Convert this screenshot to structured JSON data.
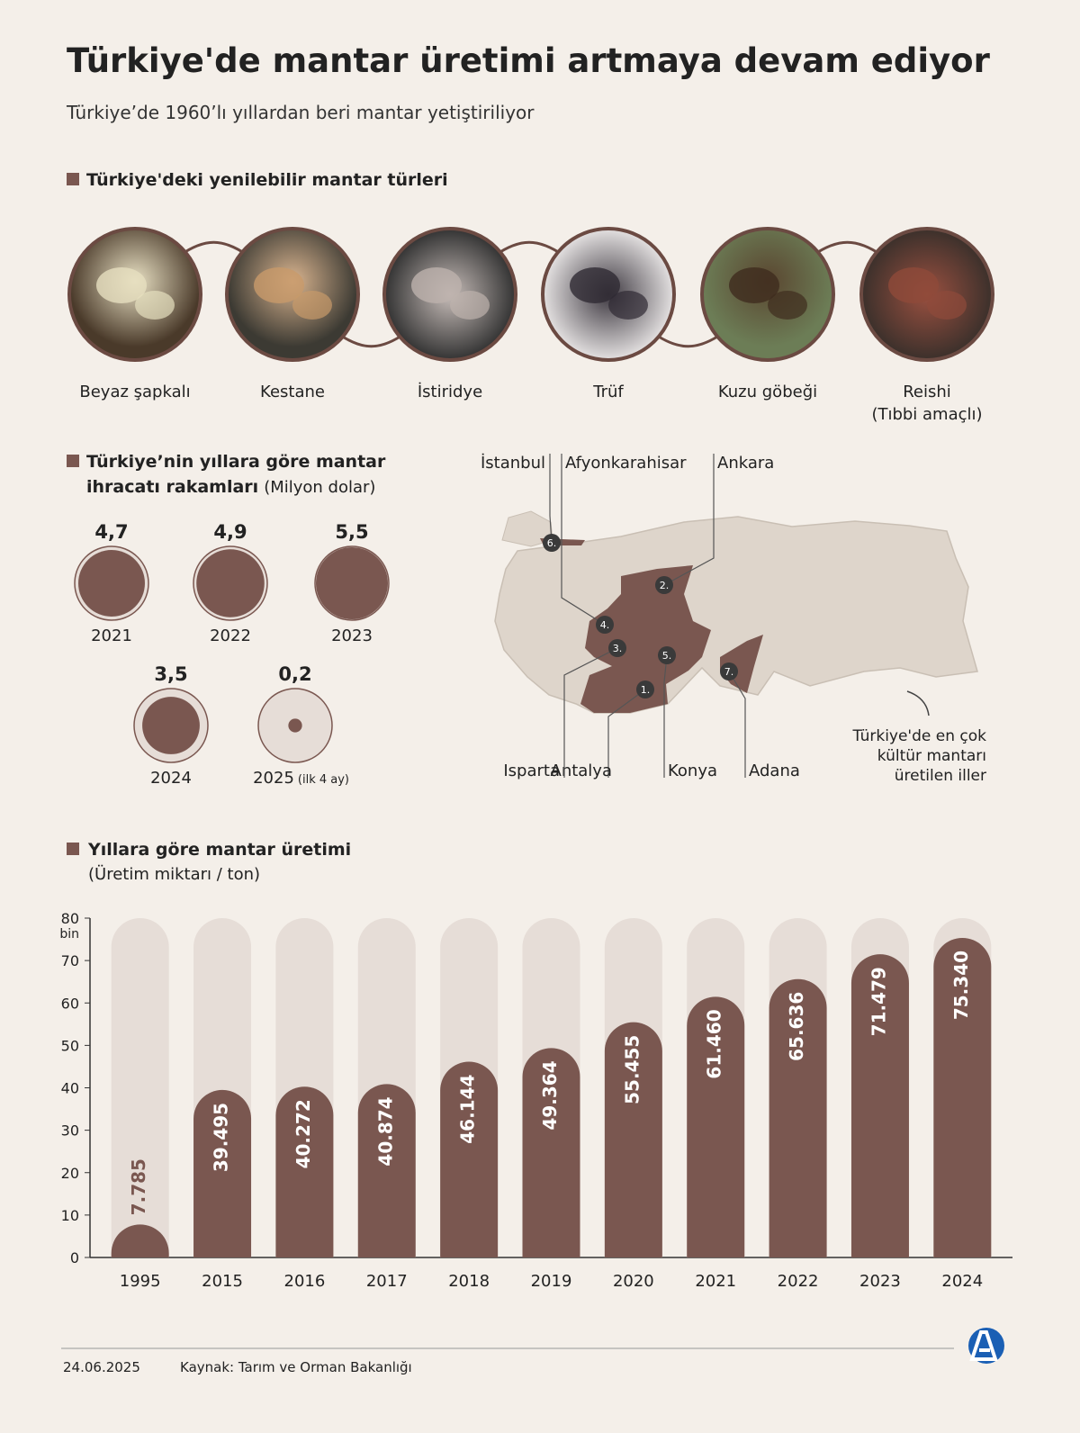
{
  "title": "Türkiye'de mantar üretimi artmaya devam ediyor",
  "subtitle": "Türkiye’de 1960’lı yıllardan beri mantar yetiştiriliyor",
  "types_section": {
    "heading": "Türkiye'deki yenilebilir mantar türleri",
    "items": [
      {
        "name": "Beyaz şapkalı"
      },
      {
        "name": "Kestane"
      },
      {
        "name": "İstiridye"
      },
      {
        "name": "Trüf"
      },
      {
        "name": "Kuzu göbeği"
      },
      {
        "name": "Reishi",
        "note": "(Tıbbi amaçlı)"
      }
    ]
  },
  "map_section": {
    "provinces": [
      {
        "number": "1.",
        "name": "Antalya"
      },
      {
        "number": "2.",
        "name": "Ankara"
      },
      {
        "number": "3.",
        "name": "Isparta"
      },
      {
        "number": "4.",
        "name": "Afyonkarahisar"
      },
      {
        "number": "5.",
        "name": "Konya"
      },
      {
        "number": "6.",
        "name": "İstanbul"
      },
      {
        "number": "7.",
        "name": "Adana"
      }
    ],
    "annotation": [
      "Türkiye'de en çok",
      "kültür mantarı",
      "üretilen iller"
    ]
  },
  "chart_data": [
    {
      "type": "bubble",
      "title": [
        "Türkiye’nin yıllara göre mantar",
        "ihracatı rakamları"
      ],
      "unit": "(Milyon dolar)",
      "categories": [
        "2021",
        "2022",
        "2023",
        "2024",
        "2025"
      ],
      "category_notes": [
        null,
        null,
        null,
        null,
        "(ilk 4 ay)"
      ],
      "values": [
        4.7,
        4.9,
        5.5,
        3.5,
        0.2
      ],
      "value_labels": [
        "4,7",
        "4,9",
        "5,5",
        "3,5",
        "0,2"
      ],
      "color": "#7a5750"
    },
    {
      "type": "bar",
      "title": "Yıllara göre mantar üretimi",
      "subtitle": "(Üretim miktarı / ton)",
      "categories": [
        "1995",
        "2015",
        "2016",
        "2017",
        "2018",
        "2019",
        "2020",
        "2021",
        "2022",
        "2023",
        "2024"
      ],
      "values": [
        7.785,
        39.495,
        40.272,
        40.874,
        46.144,
        49.364,
        55.455,
        61.46,
        65.636,
        71.479,
        75.34
      ],
      "value_labels": [
        "7.785",
        "39.495",
        "40.272",
        "40.874",
        "46.144",
        "49.364",
        "55.455",
        "61.460",
        "65.636",
        "71.479",
        "75.340"
      ],
      "ylim": [
        0,
        80
      ],
      "yticks": [
        0,
        10,
        20,
        30,
        40,
        50,
        60,
        70,
        80
      ],
      "y_unit": "bin",
      "color": "#7a5750",
      "track_color": "#e6ddd7"
    }
  ],
  "footer": {
    "date": "24.06.2025",
    "source": "Kaynak: Tarım ve Orman Bakanlığı"
  }
}
